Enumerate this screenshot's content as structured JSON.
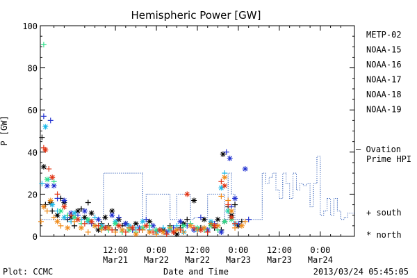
{
  "chart_data": {
    "type": "scatter",
    "title": "Hemispheric Power [GW]",
    "xlabel": "Date and Time",
    "ylabel": "P [GW]",
    "ylim": [
      0,
      100
    ],
    "xlim_hours_from_Mar21_00": [
      -10,
      82
    ],
    "grid": false,
    "yticks": [
      0,
      20,
      40,
      60,
      80,
      100
    ],
    "xticks": [
      {
        "hour": 12,
        "top": "12:00",
        "bottom": "Mar21"
      },
      {
        "hour": 24,
        "top": "0:00",
        "bottom": "Mar22"
      },
      {
        "hour": 36,
        "top": "12:00",
        "bottom": "Mar22"
      },
      {
        "hour": 48,
        "top": "0:00",
        "bottom": "Mar23"
      },
      {
        "hour": 60,
        "top": "12:00",
        "bottom": "Mar23"
      },
      {
        "hour": 72,
        "top": "0:00",
        "bottom": "Mar24"
      }
    ],
    "legend": {
      "position": "right",
      "entries": [
        {
          "name": "METP-02",
          "color": "#000000"
        },
        {
          "name": "NOAA-15",
          "color": "#1f2fd0"
        },
        {
          "name": "NOAA-16",
          "color": "#1ab8e8"
        },
        {
          "name": "NOAA-17",
          "color": "#2ee08a"
        },
        {
          "name": "NOAA-18",
          "color": "#f08a18"
        },
        {
          "name": "NOAA-19",
          "color": "#e03010"
        }
      ],
      "ovation_line1": "— Ovation",
      "ovation_line2": "Prime HPI",
      "ovation_color": "#1f4fb0",
      "south_label": "+ south",
      "north_label": "* north"
    },
    "ovation": {
      "name": "Ovation Prime HPI",
      "color": "#1f4fb0",
      "x": [
        -10,
        8,
        8.5,
        20,
        21,
        28,
        30,
        34,
        35,
        38,
        39,
        44,
        45,
        46,
        47,
        49,
        52,
        55,
        56,
        57,
        58,
        59,
        60,
        61,
        62,
        63,
        64,
        65,
        66,
        67,
        68,
        69,
        70,
        71,
        72,
        73,
        74,
        75,
        76,
        77,
        78,
        79,
        80,
        82
      ],
      "y": [
        8,
        8,
        30,
        8,
        20,
        8,
        20,
        8,
        9,
        8,
        20,
        8,
        30,
        20,
        8,
        8,
        8,
        30,
        25,
        28,
        30,
        22,
        18,
        30,
        25,
        18,
        30,
        22,
        25,
        24,
        25,
        14,
        25,
        38,
        10,
        12,
        18,
        10,
        18,
        12,
        8,
        9,
        11,
        11
      ]
    },
    "series": [
      {
        "name": "METP-02",
        "color": "#000000",
        "points": [
          [
            -9.5,
            47
          ],
          [
            -9,
            33
          ],
          [
            -8.5,
            15
          ],
          [
            -7,
            16
          ],
          [
            -6.5,
            12
          ],
          [
            -5,
            10
          ],
          [
            -4,
            18
          ],
          [
            -3,
            16
          ],
          [
            -2,
            8
          ],
          [
            -1,
            9
          ],
          [
            0,
            5
          ],
          [
            1,
            12
          ],
          [
            2,
            13
          ],
          [
            3,
            9
          ],
          [
            4,
            16
          ],
          [
            5,
            11
          ],
          [
            6,
            5
          ],
          [
            7,
            3
          ],
          [
            8,
            6
          ],
          [
            9,
            9
          ],
          [
            10,
            5
          ],
          [
            11,
            12
          ],
          [
            12,
            3
          ],
          [
            13,
            8
          ],
          [
            14,
            5
          ],
          [
            15,
            6
          ],
          [
            16,
            4
          ],
          [
            18,
            6
          ],
          [
            20,
            3
          ],
          [
            22,
            7
          ],
          [
            24,
            2
          ],
          [
            26,
            3
          ],
          [
            28,
            5
          ],
          [
            30,
            1
          ],
          [
            31,
            4
          ],
          [
            32,
            6
          ],
          [
            33,
            8
          ],
          [
            35,
            17
          ],
          [
            37,
            4
          ],
          [
            38,
            8
          ],
          [
            39,
            2
          ],
          [
            40,
            6
          ],
          [
            41,
            4
          ],
          [
            42,
            8
          ],
          [
            43,
            3
          ],
          [
            44,
            7
          ],
          [
            45,
            14
          ],
          [
            46,
            10
          ],
          [
            47,
            15
          ],
          [
            48,
            5
          ],
          [
            49,
            7
          ],
          [
            43.5,
            39
          ]
        ]
      },
      {
        "name": "NOAA-15",
        "color": "#1f2fd0",
        "points": [
          [
            -9,
            57
          ],
          [
            -8,
            24
          ],
          [
            -7,
            55
          ],
          [
            -6,
            24
          ],
          [
            -5,
            18
          ],
          [
            -3,
            17
          ],
          [
            -2,
            9
          ],
          [
            -1,
            11
          ],
          [
            1,
            10
          ],
          [
            3,
            12
          ],
          [
            5,
            6
          ],
          [
            7,
            8
          ],
          [
            9,
            4
          ],
          [
            11,
            10
          ],
          [
            13,
            9
          ],
          [
            15,
            6
          ],
          [
            17,
            3
          ],
          [
            19,
            4
          ],
          [
            21,
            8
          ],
          [
            23,
            5
          ],
          [
            25,
            3
          ],
          [
            27,
            2
          ],
          [
            29,
            4
          ],
          [
            31,
            7
          ],
          [
            33,
            5
          ],
          [
            35,
            3
          ],
          [
            37,
            9
          ],
          [
            39,
            3
          ],
          [
            41,
            6
          ],
          [
            43,
            2
          ],
          [
            44.5,
            40
          ],
          [
            45.5,
            37
          ],
          [
            46,
            14
          ],
          [
            47,
            18
          ],
          [
            48,
            6
          ],
          [
            50,
            32
          ],
          [
            51,
            8
          ]
        ]
      },
      {
        "name": "NOAA-16",
        "color": "#1ab8e8",
        "points": [
          [
            -9.5,
            25
          ],
          [
            -8.5,
            52
          ],
          [
            -7.5,
            27
          ],
          [
            -6.5,
            15
          ],
          [
            -5,
            12
          ],
          [
            -3,
            9
          ],
          [
            -1,
            7
          ],
          [
            0,
            11
          ],
          [
            2,
            8
          ],
          [
            4,
            7
          ],
          [
            6,
            9
          ],
          [
            8,
            5
          ],
          [
            10,
            4
          ],
          [
            12,
            7
          ],
          [
            14,
            3
          ],
          [
            16,
            5
          ],
          [
            18,
            4
          ],
          [
            20,
            7
          ],
          [
            22,
            3
          ],
          [
            24,
            2
          ],
          [
            26,
            4
          ],
          [
            28,
            3
          ],
          [
            30,
            5
          ],
          [
            32,
            2
          ],
          [
            34,
            6
          ],
          [
            36,
            3
          ],
          [
            38,
            4
          ],
          [
            40,
            7
          ],
          [
            42,
            5
          ],
          [
            43,
            23
          ],
          [
            44,
            30
          ],
          [
            45,
            12
          ],
          [
            46,
            9
          ],
          [
            47,
            6
          ]
        ]
      },
      {
        "name": "NOAA-17",
        "color": "#2ee08a",
        "points": [
          [
            -9,
            91
          ],
          [
            -8,
            27
          ],
          [
            -6,
            26
          ],
          [
            -4,
            12
          ],
          [
            -2,
            10
          ],
          [
            0,
            9
          ],
          [
            2,
            6
          ],
          [
            4,
            8
          ],
          [
            6,
            5
          ],
          [
            8,
            4
          ],
          [
            10,
            3
          ],
          [
            12,
            6
          ],
          [
            14,
            2
          ],
          [
            16,
            3
          ],
          [
            18,
            2
          ],
          [
            20,
            4
          ],
          [
            22,
            5
          ],
          [
            24,
            3
          ],
          [
            26,
            2
          ],
          [
            28,
            4
          ],
          [
            30,
            3
          ],
          [
            32,
            5
          ],
          [
            34,
            6
          ],
          [
            36,
            4
          ],
          [
            38,
            3
          ],
          [
            40,
            5
          ],
          [
            42,
            3
          ],
          [
            44,
            7
          ],
          [
            45,
            12
          ],
          [
            46,
            8
          ]
        ]
      },
      {
        "name": "NOAA-18",
        "color": "#f08a18",
        "points": [
          [
            -9.8,
            7
          ],
          [
            -9,
            14
          ],
          [
            -8,
            12
          ],
          [
            -7,
            17
          ],
          [
            -6,
            9
          ],
          [
            -5,
            7
          ],
          [
            -4,
            5
          ],
          [
            -2,
            4
          ],
          [
            0,
            7
          ],
          [
            2,
            4
          ],
          [
            4,
            2
          ],
          [
            6,
            5
          ],
          [
            8,
            3
          ],
          [
            10,
            4
          ],
          [
            12,
            2
          ],
          [
            14,
            3
          ],
          [
            16,
            4
          ],
          [
            18,
            1
          ],
          [
            20,
            3
          ],
          [
            22,
            2
          ],
          [
            24,
            1
          ],
          [
            26,
            2
          ],
          [
            28,
            4
          ],
          [
            30,
            3
          ],
          [
            32,
            2
          ],
          [
            34,
            5
          ],
          [
            36,
            3
          ],
          [
            38,
            4
          ],
          [
            40,
            6
          ],
          [
            42,
            5
          ],
          [
            43,
            19
          ],
          [
            44,
            28
          ],
          [
            45,
            17
          ],
          [
            46,
            12
          ],
          [
            47,
            4
          ],
          [
            49,
            5
          ],
          [
            50,
            7
          ]
        ]
      },
      {
        "name": "NOAA-19",
        "color": "#e03010",
        "points": [
          [
            -9,
            42
          ],
          [
            -8.5,
            41
          ],
          [
            -7.5,
            32
          ],
          [
            -6.5,
            28
          ],
          [
            -5,
            20
          ],
          [
            -3,
            14
          ],
          [
            -1,
            10
          ],
          [
            1,
            8
          ],
          [
            3,
            6
          ],
          [
            5,
            7
          ],
          [
            7,
            5
          ],
          [
            9,
            4
          ],
          [
            11,
            3
          ],
          [
            13,
            5
          ],
          [
            15,
            2
          ],
          [
            17,
            4
          ],
          [
            19,
            3
          ],
          [
            21,
            5
          ],
          [
            23,
            2
          ],
          [
            25,
            3
          ],
          [
            27,
            1
          ],
          [
            29,
            2
          ],
          [
            31,
            3
          ],
          [
            33,
            20
          ],
          [
            35,
            4
          ],
          [
            37,
            3
          ],
          [
            39,
            2
          ],
          [
            41,
            5
          ],
          [
            43,
            26
          ],
          [
            44,
            24
          ],
          [
            45,
            15
          ],
          [
            46,
            9
          ],
          [
            47,
            6
          ]
        ]
      }
    ]
  },
  "footer": {
    "plot_credit": "Plot: CCMC",
    "xlabel": "Date and Time",
    "timestamp": "2013/03/24 05:45:05"
  }
}
